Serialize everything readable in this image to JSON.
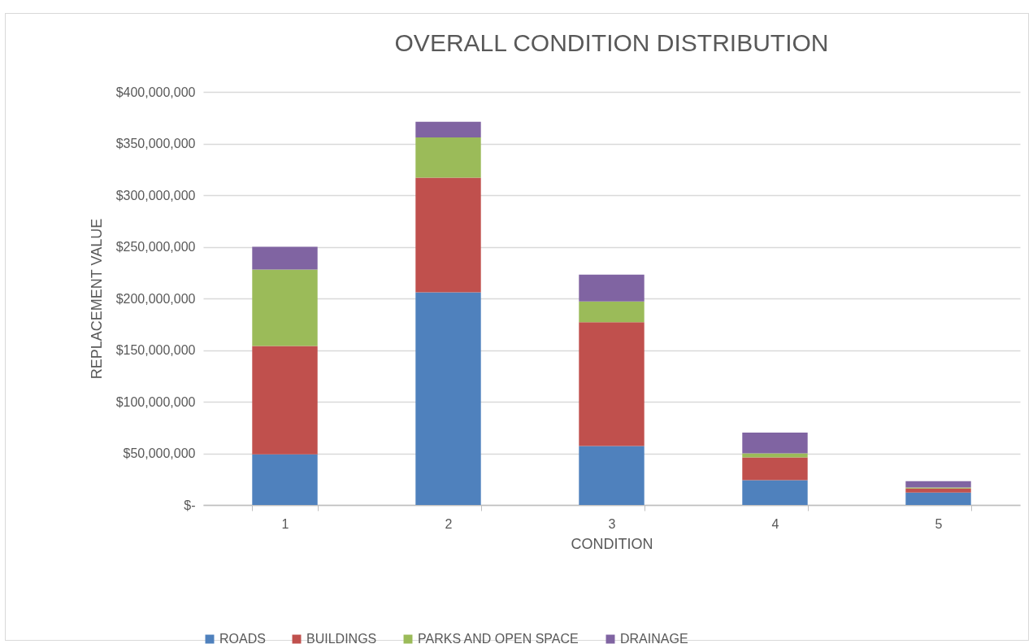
{
  "chart_data": {
    "type": "bar",
    "title": "OVERALL CONDITION DISTRIBUTION",
    "xlabel": "CONDITION",
    "ylabel": "REPLACEMENT VALUE",
    "categories": [
      "1",
      "2",
      "3",
      "4",
      "5"
    ],
    "series": [
      {
        "name": "ROADS",
        "color": "#4f81bd",
        "values": [
          49000000,
          206000000,
          57000000,
          24000000,
          12000000
        ]
      },
      {
        "name": "BUILDINGS",
        "color": "#c0504d",
        "values": [
          105000000,
          111000000,
          120000000,
          22000000,
          4000000
        ]
      },
      {
        "name": "PARKS AND OPEN SPACE",
        "color": "#9bbb59",
        "values": [
          74000000,
          39000000,
          20000000,
          4000000,
          1000000
        ]
      },
      {
        "name": "DRAINAGE",
        "color": "#8064a2",
        "values": [
          22000000,
          15000000,
          26000000,
          20000000,
          6000000
        ]
      }
    ],
    "stacked": true,
    "ylim": [
      0,
      400000000
    ],
    "yticks": [
      {
        "value": 0,
        "label": "$-"
      },
      {
        "value": 50000000,
        "label": "$50,000,000"
      },
      {
        "value": 100000000,
        "label": "$100,000,000"
      },
      {
        "value": 150000000,
        "label": "$150,000,000"
      },
      {
        "value": 200000000,
        "label": "$200,000,000"
      },
      {
        "value": 250000000,
        "label": "$250,000,000"
      },
      {
        "value": 300000000,
        "label": "$300,000,000"
      },
      {
        "value": 350000000,
        "label": "$350,000,000"
      },
      {
        "value": 400000000,
        "label": "$400,000,000"
      }
    ],
    "grid": "y",
    "legend": "bottom"
  }
}
